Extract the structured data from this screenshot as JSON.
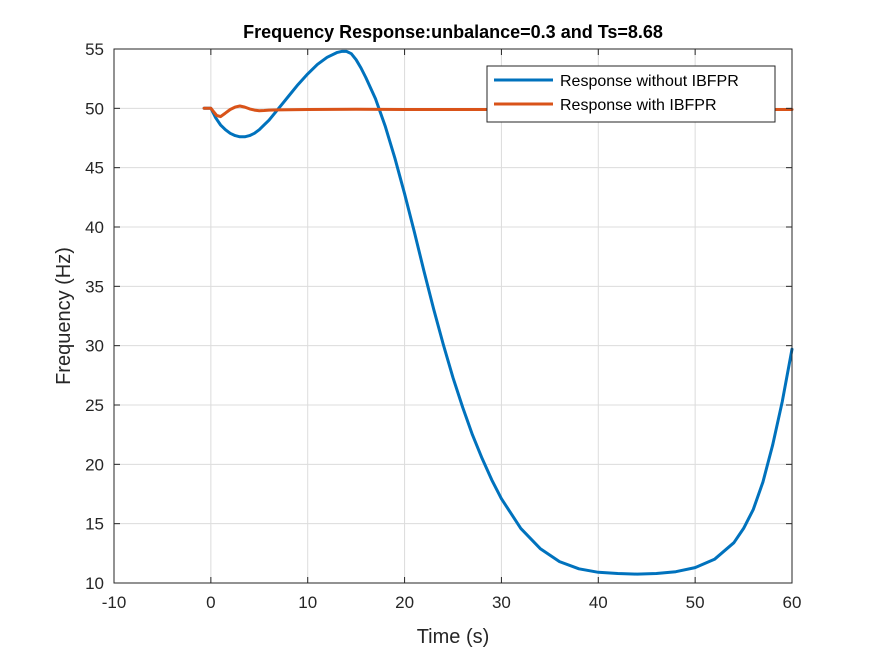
{
  "chart_data": {
    "type": "line",
    "title": "Frequency Response:unbalance=0.3 and Ts=8.68",
    "xlabel": "Time (s)",
    "ylabel": "Frequency (Hz)",
    "xlim": [
      -10,
      60
    ],
    "ylim": [
      10,
      55
    ],
    "xticks": [
      -10,
      0,
      10,
      20,
      30,
      40,
      50,
      60
    ],
    "yticks": [
      10,
      15,
      20,
      25,
      30,
      35,
      40,
      45,
      50,
      55
    ],
    "grid": true,
    "legend_position": "top-right",
    "series": [
      {
        "name": "Response without IBFPR",
        "color": "#0072BD",
        "x": [
          -0.7,
          0,
          0.5,
          1,
          1.5,
          2,
          2.5,
          3,
          3.5,
          4,
          4.5,
          5,
          5.5,
          6,
          6.5,
          7,
          7.5,
          8,
          9,
          10,
          11,
          12,
          13,
          13.5,
          14,
          14.5,
          15,
          15.5,
          16,
          17,
          18,
          19,
          20,
          21,
          22,
          23,
          24,
          25,
          26,
          27,
          28,
          29,
          30,
          32,
          34,
          36,
          38,
          40,
          42,
          44,
          46,
          48,
          50,
          52,
          54,
          55,
          56,
          57,
          58,
          59,
          60
        ],
        "y": [
          50,
          50,
          49.2,
          48.6,
          48.2,
          47.9,
          47.7,
          47.6,
          47.6,
          47.7,
          47.9,
          48.2,
          48.6,
          49,
          49.5,
          50,
          50.5,
          51,
          52,
          52.9,
          53.7,
          54.3,
          54.7,
          54.8,
          54.8,
          54.6,
          54.1,
          53.4,
          52.6,
          50.8,
          48.5,
          45.8,
          42.8,
          39.6,
          36.3,
          33.1,
          30.1,
          27.3,
          24.8,
          22.5,
          20.5,
          18.7,
          17.1,
          14.6,
          12.9,
          11.8,
          11.2,
          10.9,
          10.8,
          10.75,
          10.8,
          10.95,
          11.3,
          12,
          13.4,
          14.6,
          16.2,
          18.5,
          21.6,
          25.3,
          29.7
        ]
      },
      {
        "name": "Response with IBFPR",
        "color": "#D95319",
        "x": [
          -0.7,
          0,
          0.3,
          0.6,
          1,
          1.5,
          2,
          2.5,
          3,
          3.5,
          4,
          4.5,
          5,
          5.5,
          6,
          7,
          8,
          10,
          15,
          20,
          30,
          40,
          50,
          60
        ],
        "y": [
          50,
          50,
          49.7,
          49.4,
          49.3,
          49.6,
          49.9,
          50.1,
          50.2,
          50.1,
          49.95,
          49.85,
          49.8,
          49.82,
          49.85,
          49.87,
          49.88,
          49.9,
          49.92,
          49.9,
          49.9,
          49.9,
          49.9,
          49.9
        ]
      }
    ]
  }
}
